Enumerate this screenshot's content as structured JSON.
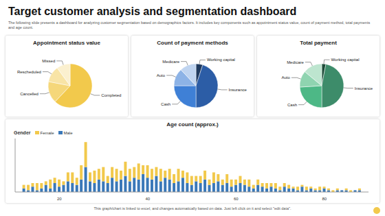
{
  "title": "Target customer analysis and segmentation dashboard",
  "subtitle": "The following slide presents a dashboard for analyzing customer segmentation based on demographics factors. It includes key components such as appointment status value, count of payment method, total payments and age count.",
  "footer": "This graph/chart is linked to excel, and changes automatically based on data. Just left click on it and select \"edit data\".",
  "chart_data": [
    {
      "type": "pie",
      "title": "Appointment status value",
      "categories": [
        "Completed",
        "Cancelled",
        "Rescheduled",
        "Missed"
      ],
      "values": [
        62,
        16,
        12,
        10
      ],
      "colors": [
        "#F2C94C",
        "#F5D77A",
        "#F8E4A6",
        "#FBF0CF"
      ]
    },
    {
      "type": "pie",
      "title": "Count of payment methods",
      "categories": [
        "Working capital",
        "Insurance",
        "Cash",
        "Auto",
        "Medicare"
      ],
      "values": [
        5,
        45,
        25,
        13,
        12
      ],
      "colors": [
        "#1F3A5F",
        "#2C5DA6",
        "#3F80D6",
        "#8DB3E6",
        "#BFD4F0"
      ]
    },
    {
      "type": "pie",
      "title": "Total payment",
      "categories": [
        "Working capital",
        "Insurance",
        "Cash",
        "Auto",
        "Medicare"
      ],
      "values": [
        3,
        47,
        24,
        12,
        14
      ],
      "colors": [
        "#1F4D3A",
        "#3D8C6A",
        "#4DB886",
        "#8FD4B0",
        "#BDE5CF"
      ]
    },
    {
      "type": "bar",
      "title": "Age count (approx.)",
      "x": [
        12,
        13,
        14,
        15,
        16,
        17,
        18,
        19,
        20,
        21,
        22,
        23,
        24,
        25,
        26,
        27,
        28,
        29,
        30,
        31,
        32,
        33,
        34,
        35,
        36,
        37,
        38,
        39,
        40,
        41,
        42,
        43,
        44,
        45,
        46,
        47,
        48,
        49,
        50,
        51,
        52,
        53,
        54,
        55,
        56,
        57,
        58,
        59,
        60,
        61,
        62,
        63,
        64,
        65,
        66,
        67,
        68,
        69,
        70,
        71,
        72,
        73,
        74,
        75,
        76,
        77,
        78,
        79,
        80,
        81,
        82,
        83,
        84,
        85,
        86,
        87,
        88
      ],
      "series": [
        {
          "name": "Female",
          "color": "#F2C94C",
          "values": [
            2,
            3,
            2,
            4,
            3,
            2,
            5,
            3,
            4,
            2,
            5,
            6,
            4,
            8,
            14,
            5,
            7,
            6,
            8,
            4,
            6,
            7,
            5,
            8,
            7,
            6,
            9,
            5,
            7,
            6,
            5,
            7,
            4,
            6,
            5,
            7,
            4,
            6,
            5,
            3,
            4,
            5,
            3,
            6,
            4,
            3,
            5,
            4,
            3,
            4,
            3,
            4,
            2,
            3,
            2,
            3,
            2,
            3,
            2,
            2,
            2,
            1,
            2,
            1,
            2,
            1,
            1,
            2,
            1,
            1,
            1,
            1,
            0,
            1,
            1,
            0,
            1
          ]
        },
        {
          "name": "Male",
          "color": "#3A78B8",
          "values": [
            2,
            1,
            3,
            1,
            2,
            4,
            2,
            5,
            3,
            4,
            6,
            5,
            4,
            7,
            14,
            6,
            5,
            7,
            6,
            5,
            8,
            6,
            7,
            9,
            6,
            8,
            7,
            10,
            8,
            7,
            9,
            6,
            8,
            7,
            5,
            6,
            8,
            5,
            4,
            6,
            5,
            7,
            4,
            5,
            6,
            4,
            5,
            3,
            4,
            5,
            4,
            3,
            2,
            4,
            3,
            2,
            3,
            2,
            1,
            3,
            2,
            2,
            1,
            3,
            1,
            2,
            1,
            1,
            2,
            1,
            0,
            1,
            1,
            1,
            0,
            1,
            1
          ]
        }
      ],
      "stacked": true,
      "xlim": [
        10,
        90
      ],
      "xticks": [
        20,
        40,
        60,
        80
      ],
      "ylim": [
        0,
        30
      ],
      "tick_labels": "x",
      "legend": "top-left",
      "legend_title": "Gender"
    }
  ]
}
